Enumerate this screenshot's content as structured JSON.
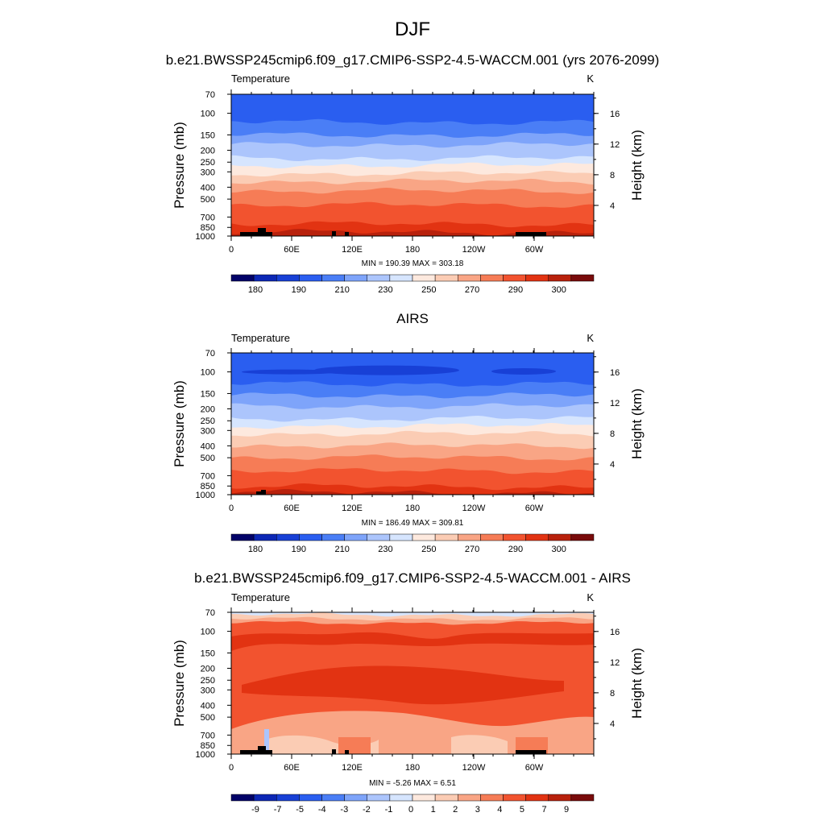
{
  "figure": {
    "title": "DJF",
    "panel_titles": [
      "b.e21.BWSSP245cmip6.f09_g17.CMIP6-SSP2-4.5-WACCM.001 (yrs 2076-2099)",
      "AIRS",
      "b.e21.BWSSP245cmip6.f09_g17.CMIP6-SSP2-4.5-WACCM.001 - AIRS"
    ]
  },
  "chart_data": [
    {
      "type": "heatmap",
      "left_label": "Temperature",
      "units": "K",
      "ylabel": "Pressure (mb)",
      "y2label": "Height (km)",
      "x_ticks": [
        "0",
        "60E",
        "120E",
        "180",
        "120W",
        "60W"
      ],
      "y_ticks": [
        "70",
        "100",
        "150",
        "200",
        "250",
        "300",
        "400",
        "500",
        "700",
        "850",
        "1000"
      ],
      "y_tick_values": [
        70,
        100,
        150,
        200,
        250,
        300,
        400,
        500,
        700,
        850,
        1000
      ],
      "y2_ticks": [
        "16",
        "12",
        "8",
        "4"
      ],
      "y2_tick_values": [
        16,
        12,
        8,
        4
      ],
      "stats": "MIN = 190.39  MAX = 303.18",
      "min": 190.39,
      "max": 303.18,
      "colorbar_labels": [
        "180",
        "190",
        "210",
        "230",
        "250",
        "270",
        "290",
        "300"
      ],
      "colorbar_colors": [
        "#020268",
        "#0c27b5",
        "#1840d6",
        "#2a5ef0",
        "#4a7ef6",
        "#7ea4fa",
        "#acc5fc",
        "#d6e5fe",
        "#fde9de",
        "#fbccb4",
        "#f9a585",
        "#f67c56",
        "#f2532f",
        "#e23312",
        "#b8210c",
        "#790b0b"
      ]
    },
    {
      "type": "heatmap",
      "left_label": "Temperature",
      "units": "K",
      "ylabel": "Pressure (mb)",
      "y2label": "Height (km)",
      "x_ticks": [
        "0",
        "60E",
        "120E",
        "180",
        "120W",
        "60W"
      ],
      "y_ticks": [
        "70",
        "100",
        "150",
        "200",
        "250",
        "300",
        "400",
        "500",
        "700",
        "850",
        "1000"
      ],
      "y_tick_values": [
        70,
        100,
        150,
        200,
        250,
        300,
        400,
        500,
        700,
        850,
        1000
      ],
      "y2_ticks": [
        "16",
        "12",
        "8",
        "4"
      ],
      "y2_tick_values": [
        16,
        12,
        8,
        4
      ],
      "stats": "MIN = 186.49  MAX = 309.81",
      "min": 186.49,
      "max": 309.81,
      "colorbar_labels": [
        "180",
        "190",
        "210",
        "230",
        "250",
        "270",
        "290",
        "300"
      ],
      "colorbar_colors": [
        "#020268",
        "#0c27b5",
        "#1840d6",
        "#2a5ef0",
        "#4a7ef6",
        "#7ea4fa",
        "#acc5fc",
        "#d6e5fe",
        "#fde9de",
        "#fbccb4",
        "#f9a585",
        "#f67c56",
        "#f2532f",
        "#e23312",
        "#b8210c",
        "#790b0b"
      ]
    },
    {
      "type": "heatmap",
      "left_label": "Temperature",
      "units": "K",
      "ylabel": "Pressure (mb)",
      "y2label": "Height (km)",
      "x_ticks": [
        "0",
        "60E",
        "120E",
        "180",
        "120W",
        "60W"
      ],
      "y_ticks": [
        "70",
        "100",
        "150",
        "200",
        "250",
        "300",
        "400",
        "500",
        "700",
        "850",
        "1000"
      ],
      "y_tick_values": [
        70,
        100,
        150,
        200,
        250,
        300,
        400,
        500,
        700,
        850,
        1000
      ],
      "y2_ticks": [
        "16",
        "12",
        "8",
        "4"
      ],
      "y2_tick_values": [
        16,
        12,
        8,
        4
      ],
      "stats": "MIN =  -5.26  MAX =   6.51",
      "min": -5.26,
      "max": 6.51,
      "colorbar_labels": [
        "-9",
        "-7",
        "-5",
        "-4",
        "-3",
        "-2",
        "-1",
        "0",
        "1",
        "2",
        "3",
        "4",
        "5",
        "7",
        "9"
      ],
      "colorbar_colors": [
        "#020268",
        "#0c27b5",
        "#1840d6",
        "#2a5ef0",
        "#4a7ef6",
        "#7ea4fa",
        "#acc5fc",
        "#d6e5fe",
        "#fde9de",
        "#fbccb4",
        "#f9a585",
        "#f67c56",
        "#f2532f",
        "#e23312",
        "#b8210c",
        "#790b0b"
      ]
    }
  ]
}
